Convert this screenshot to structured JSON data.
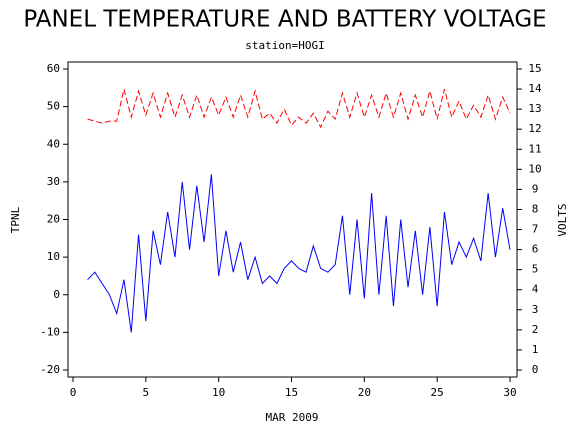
{
  "chart_data": {
    "type": "line",
    "title": "PANEL TEMPERATURE AND BATTERY VOLTAGE",
    "subtitle": "station=HOGI",
    "x_label": "MAR 2009",
    "y_label": "TPNL",
    "y2_label": "VOLTS",
    "x": [
      1,
      1.5,
      2,
      2.5,
      3,
      3.5,
      4,
      4.5,
      5,
      5.5,
      6,
      6.5,
      7,
      7.5,
      8,
      8.5,
      9,
      9.5,
      10,
      10.5,
      11,
      11.5,
      12,
      12.5,
      13,
      13.5,
      14,
      14.5,
      15,
      15.5,
      16,
      16.5,
      17,
      17.5,
      18,
      18.5,
      19,
      19.5,
      20,
      20.5,
      21,
      21.5,
      22,
      22.5,
      23,
      23.5,
      24,
      24.5,
      25,
      25.5,
      26,
      26.5,
      27,
      27.5,
      28,
      28.5,
      29,
      29.5,
      30
    ],
    "series": [
      {
        "name": "TPNL",
        "color": "#0000ff",
        "line_style": "solid",
        "axis": "y",
        "values": [
          4,
          6,
          3,
          0,
          -5,
          4,
          -10,
          16,
          -7,
          17,
          8,
          22,
          10,
          30,
          12,
          29,
          14,
          32,
          5,
          17,
          6,
          14,
          4,
          10,
          3,
          5,
          3,
          7,
          9,
          7,
          6,
          13,
          7,
          6,
          8,
          21,
          0,
          20,
          -1,
          27,
          0,
          21,
          -3,
          20,
          2,
          17,
          0,
          18,
          -3,
          22,
          8,
          14,
          10,
          15,
          9,
          27,
          10,
          23,
          12
        ]
      },
      {
        "name": "VOLTS",
        "color": "#ff0000",
        "line_style": "dashed",
        "axis": "y2",
        "values": [
          12.5,
          12.4,
          12.3,
          12.4,
          12.4,
          14.0,
          12.6,
          13.9,
          12.7,
          13.8,
          12.6,
          13.8,
          12.6,
          13.7,
          12.6,
          13.7,
          12.6,
          13.6,
          12.7,
          13.6,
          12.6,
          13.7,
          12.6,
          13.9,
          12.5,
          12.8,
          12.3,
          13.0,
          12.2,
          12.6,
          12.3,
          12.8,
          12.1,
          12.9,
          12.5,
          13.8,
          12.6,
          13.8,
          12.6,
          13.7,
          12.6,
          13.8,
          12.6,
          13.8,
          12.5,
          13.7,
          12.6,
          13.9,
          12.5,
          14.0,
          12.6,
          13.4,
          12.5,
          13.2,
          12.6,
          13.7,
          12.5,
          13.6,
          12.8
        ]
      }
    ],
    "xlim": [
      0,
      30
    ],
    "xticks": [
      0,
      5,
      10,
      15,
      20,
      25,
      30
    ],
    "ylim": [
      -20,
      60
    ],
    "yticks": [
      -20,
      -10,
      0,
      10,
      20,
      30,
      40,
      50,
      60
    ],
    "y2lim": [
      0,
      15
    ],
    "y2ticks": [
      0,
      1,
      2,
      3,
      4,
      5,
      6,
      7,
      8,
      9,
      10,
      11,
      12,
      13,
      14,
      15
    ],
    "grid": false
  }
}
